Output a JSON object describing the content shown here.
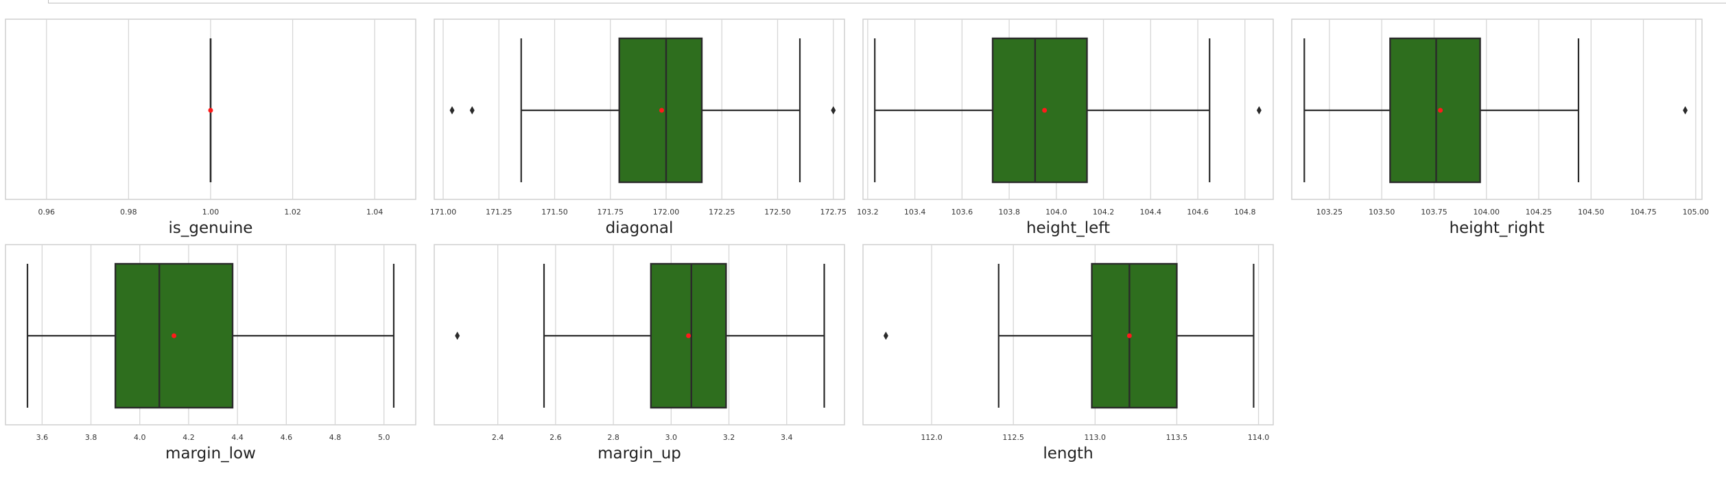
{
  "colors": {
    "box_fill": "#2e6e1e",
    "mean_marker": "#ff1a1a",
    "line": "#2a2a2a",
    "grid": "#d6d6d6"
  },
  "chart_data": [
    {
      "type": "box",
      "xlabel": "is_genuine",
      "xlim": [
        0.95,
        1.05
      ],
      "ticks": [
        0.96,
        0.98,
        1.0,
        1.02,
        1.04
      ],
      "tick_labels": [
        "0.96",
        "0.98",
        "1.00",
        "1.02",
        "1.04"
      ],
      "min": 1.0,
      "q1": 1.0,
      "median": 1.0,
      "q3": 1.0,
      "max": 1.0,
      "mean": 1.0,
      "outliers": []
    },
    {
      "type": "box",
      "xlabel": "diagonal",
      "xlim": [
        170.96,
        172.8
      ],
      "ticks": [
        171.0,
        171.25,
        171.5,
        171.75,
        172.0,
        172.25,
        172.5,
        172.75
      ],
      "tick_labels": [
        "171.00",
        "171.25",
        "171.50",
        "171.75",
        "172.00",
        "172.25",
        "172.50",
        "172.75"
      ],
      "min": 171.35,
      "q1": 171.79,
      "median": 172.0,
      "q3": 172.16,
      "max": 172.6,
      "mean": 171.98,
      "outliers": [
        171.04,
        171.13,
        172.75
      ]
    },
    {
      "type": "box",
      "xlabel": "height_left",
      "xlim": [
        103.18,
        104.92
      ],
      "ticks": [
        103.2,
        103.4,
        103.6,
        103.8,
        104.0,
        104.2,
        104.4,
        104.6,
        104.8
      ],
      "tick_labels": [
        "103.2",
        "103.4",
        "103.6",
        "103.8",
        "104.0",
        "104.2",
        "104.4",
        "104.6",
        "104.8"
      ],
      "min": 103.23,
      "q1": 103.73,
      "median": 103.91,
      "q3": 104.13,
      "max": 104.65,
      "mean": 103.95,
      "outliers": [
        104.86
      ]
    },
    {
      "type": "box",
      "xlabel": "height_right",
      "xlim": [
        103.07,
        105.03
      ],
      "ticks": [
        103.25,
        103.5,
        103.75,
        104.0,
        104.25,
        104.5,
        104.75,
        105.0
      ],
      "tick_labels": [
        "103.25",
        "103.50",
        "103.75",
        "104.00",
        "104.25",
        "104.50",
        "104.75",
        "105.00"
      ],
      "min": 103.13,
      "q1": 103.54,
      "median": 103.76,
      "q3": 103.97,
      "max": 104.44,
      "mean": 103.78,
      "outliers": [
        104.95
      ]
    },
    {
      "type": "box",
      "xlabel": "margin_low",
      "xlim": [
        3.45,
        5.13
      ],
      "ticks": [
        3.6,
        3.8,
        4.0,
        4.2,
        4.4,
        4.6,
        4.8,
        5.0
      ],
      "tick_labels": [
        "3.6",
        "3.8",
        "4.0",
        "4.2",
        "4.4",
        "4.6",
        "4.8",
        "5.0"
      ],
      "min": 3.54,
      "q1": 3.9,
      "median": 4.08,
      "q3": 4.38,
      "max": 5.04,
      "mean": 4.14,
      "outliers": []
    },
    {
      "type": "box",
      "xlabel": "margin_up",
      "xlim": [
        2.18,
        3.6
      ],
      "ticks": [
        2.4,
        2.6,
        2.8,
        3.0,
        3.2,
        3.4
      ],
      "tick_labels": [
        "2.4",
        "2.6",
        "2.8",
        "3.0",
        "3.2",
        "3.4"
      ],
      "min": 2.56,
      "q1": 2.93,
      "median": 3.07,
      "q3": 3.19,
      "max": 3.53,
      "mean": 3.06,
      "outliers": [
        2.26
      ]
    },
    {
      "type": "box",
      "xlabel": "length",
      "xlim": [
        111.58,
        114.09
      ],
      "ticks": [
        112.0,
        112.5,
        113.0,
        113.5,
        114.0
      ],
      "tick_labels": [
        "112.0",
        "112.5",
        "113.0",
        "113.5",
        "114.0"
      ],
      "min": 112.41,
      "q1": 112.98,
      "median": 113.21,
      "q3": 113.5,
      "max": 113.97,
      "mean": 113.21,
      "outliers": [
        111.72
      ]
    }
  ]
}
